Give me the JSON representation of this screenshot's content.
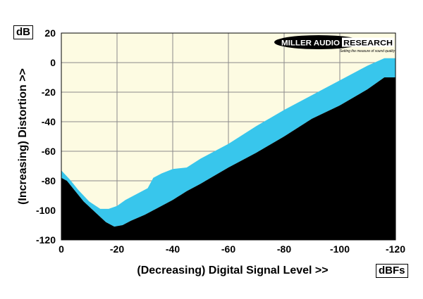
{
  "chart_data": {
    "type": "area",
    "title": "",
    "xlabel": "(Decreasing) Digital Signal Level >>",
    "ylabel": "(Increasing) Distortion >>",
    "x_unit": "dBFs",
    "y_unit": "dB",
    "xlim": [
      0,
      -120
    ],
    "ylim": [
      -120,
      20
    ],
    "x_ticks": [
      0,
      -20,
      -40,
      -60,
      -80,
      -100,
      -120
    ],
    "y_ticks": [
      20,
      0,
      -20,
      -40,
      -60,
      -80,
      -100,
      -120
    ],
    "grid": true,
    "logo": {
      "brand": "MILLER AUDIO RESEARCH",
      "tagline": "Setting the measure of sound quality"
    },
    "colors": {
      "plot_bg": "#fdfbe2",
      "band": "#38c6ec",
      "fill_below": "#000000",
      "grid": "#8a8a8a"
    },
    "series": [
      {
        "role": "band-upper",
        "x": [
          0,
          -3,
          -6,
          -10,
          -14,
          -17,
          -20,
          -23,
          -27,
          -31,
          -33,
          -36,
          -40,
          -45,
          -50,
          -60,
          -70,
          -80,
          -90,
          -100,
          -110,
          -116,
          -120
        ],
        "y": [
          -73,
          -79,
          -86,
          -94,
          -99,
          -99,
          -97,
          -93,
          -89,
          -85,
          -78,
          -75,
          -72,
          -71,
          -65,
          -55,
          -43,
          -32,
          -22,
          -12,
          -2,
          3,
          3
        ]
      },
      {
        "role": "band-lower",
        "x": [
          0,
          -2,
          -5,
          -8,
          -12,
          -16,
          -19,
          -22,
          -25,
          -30,
          -35,
          -40,
          -45,
          -50,
          -60,
          -70,
          -80,
          -90,
          -100,
          -110,
          -116,
          -120
        ],
        "y": [
          -78,
          -80,
          -87,
          -94,
          -101,
          -108,
          -111,
          -110,
          -107,
          -103,
          -98,
          -93,
          -87,
          -82,
          -71,
          -61,
          -50,
          -38,
          -29,
          -18,
          -10,
          -10
        ]
      }
    ]
  }
}
